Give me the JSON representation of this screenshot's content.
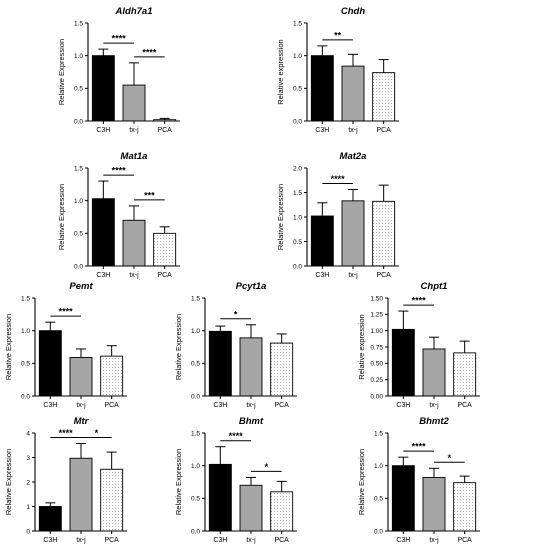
{
  "chart_data": [
    {
      "type": "bar",
      "title": "Aldh7a1",
      "ylabel": "Relative Expression",
      "categories": [
        "C3H",
        "tx-j",
        "PCA"
      ],
      "values": [
        1.0,
        0.55,
        0.02
      ],
      "errors": [
        0.1,
        0.34,
        0.02
      ],
      "ylim": [
        0,
        1.5
      ],
      "yticks": [
        "0.0",
        "0.5",
        "1.0",
        "1.5"
      ],
      "significance": [
        {
          "from": 0,
          "to": 1,
          "label": "****"
        },
        {
          "from": 1,
          "to": 2,
          "label": "****"
        }
      ]
    },
    {
      "type": "bar",
      "title": "Chdh",
      "ylabel": "Relative expression",
      "categories": [
        "C3H",
        "tx-j",
        "PCA"
      ],
      "values": [
        1.0,
        0.84,
        0.74
      ],
      "errors": [
        0.15,
        0.18,
        0.2
      ],
      "ylim": [
        0,
        1.5
      ],
      "yticks": [
        "0.0",
        "0.5",
        "1.0",
        "1.5"
      ],
      "significance": [
        {
          "from": 0,
          "to": 1,
          "label": "**"
        }
      ]
    },
    {
      "type": "bar",
      "title": "Mat1a",
      "ylabel": "Relative Expression",
      "categories": [
        "C3H",
        "tx-j",
        "PCA"
      ],
      "values": [
        1.03,
        0.7,
        0.5
      ],
      "errors": [
        0.27,
        0.22,
        0.1
      ],
      "ylim": [
        0,
        1.5
      ],
      "yticks": [
        "0.0",
        "0.5",
        "1.0",
        "1.5"
      ],
      "significance": [
        {
          "from": 0,
          "to": 1,
          "label": "****"
        },
        {
          "from": 1,
          "to": 2,
          "label": "***"
        }
      ]
    },
    {
      "type": "bar",
      "title": "Mat2a",
      "ylabel": "Relative Expression",
      "categories": [
        "C3H",
        "tx-j",
        "PCA"
      ],
      "values": [
        1.02,
        1.33,
        1.32
      ],
      "errors": [
        0.27,
        0.23,
        0.33
      ],
      "ylim": [
        0,
        2.0
      ],
      "yticks": [
        "0.0",
        "0.5",
        "1.0",
        "1.5",
        "2.0"
      ],
      "significance": [
        {
          "from": 0,
          "to": 1,
          "label": "****"
        }
      ]
    },
    {
      "type": "bar",
      "title": "Pemt",
      "ylabel": "Relative Expression",
      "categories": [
        "C3H",
        "tx-j",
        "PCA"
      ],
      "values": [
        1.0,
        0.59,
        0.61
      ],
      "errors": [
        0.13,
        0.13,
        0.16
      ],
      "ylim": [
        0,
        1.5
      ],
      "yticks": [
        "0.0",
        "0.5",
        "1.0",
        "1.5"
      ],
      "significance": [
        {
          "from": 0,
          "to": 1,
          "label": "****"
        }
      ]
    },
    {
      "type": "bar",
      "title": "Pcyt1a",
      "ylabel": "Relative Expression",
      "categories": [
        "C3H",
        "tx-j",
        "PCA"
      ],
      "values": [
        0.99,
        0.89,
        0.81
      ],
      "errors": [
        0.08,
        0.2,
        0.14
      ],
      "ylim": [
        0,
        1.5
      ],
      "yticks": [
        "0.0",
        "0.5",
        "1.0",
        "1.5"
      ],
      "significance": [
        {
          "from": 0,
          "to": 1,
          "label": "*"
        }
      ]
    },
    {
      "type": "bar",
      "title": "Chpt1",
      "ylabel": "Relative expression",
      "categories": [
        "C3H",
        "tx-j",
        "PCA"
      ],
      "values": [
        1.02,
        0.72,
        0.66
      ],
      "errors": [
        0.28,
        0.18,
        0.18
      ],
      "ylim": [
        0,
        1.5
      ],
      "yticks": [
        "0.00",
        "0.25",
        "0.50",
        "0.75",
        "1.00",
        "1.25",
        "1.50"
      ],
      "significance": [
        {
          "from": 0,
          "to": 1,
          "label": "****"
        }
      ]
    },
    {
      "type": "bar",
      "title": "Mtr",
      "ylabel": "Relative Expression",
      "categories": [
        "C3H",
        "tx-j",
        "PCA"
      ],
      "values": [
        1.0,
        2.97,
        2.52
      ],
      "errors": [
        0.15,
        0.6,
        0.7
      ],
      "ylim": [
        0,
        4
      ],
      "yticks": [
        "0",
        "1",
        "2",
        "3",
        "4"
      ],
      "significance": [
        {
          "from": 0,
          "to": 1,
          "label": "****"
        },
        {
          "from": 1,
          "to": 2,
          "label": "*"
        }
      ]
    },
    {
      "type": "bar",
      "title": "Bhmt",
      "ylabel": "Relative Expression",
      "categories": [
        "C3H",
        "tx-j",
        "PCA"
      ],
      "values": [
        1.02,
        0.7,
        0.6
      ],
      "errors": [
        0.27,
        0.12,
        0.16
      ],
      "ylim": [
        0,
        1.5
      ],
      "yticks": [
        "0.0",
        "0.5",
        "1.0",
        "1.5"
      ],
      "significance": [
        {
          "from": 0,
          "to": 1,
          "label": "****"
        },
        {
          "from": 1,
          "to": 2,
          "label": "*"
        }
      ]
    },
    {
      "type": "bar",
      "title": "Bhmt2",
      "ylabel": "Relative Expression",
      "categories": [
        "C3H",
        "tx-j",
        "PCA"
      ],
      "values": [
        1.0,
        0.82,
        0.74
      ],
      "errors": [
        0.13,
        0.14,
        0.1
      ],
      "ylim": [
        0,
        1.5
      ],
      "yticks": [
        "0.0",
        "0.5",
        "1.0",
        "1.5"
      ],
      "significance": [
        {
          "from": 0,
          "to": 1,
          "label": "****"
        },
        {
          "from": 1,
          "to": 2,
          "label": "*"
        }
      ]
    }
  ],
  "colors": {
    "C3H": "#000000",
    "tx-j": "#a6a6a6",
    "PCA": "#ffffff"
  }
}
